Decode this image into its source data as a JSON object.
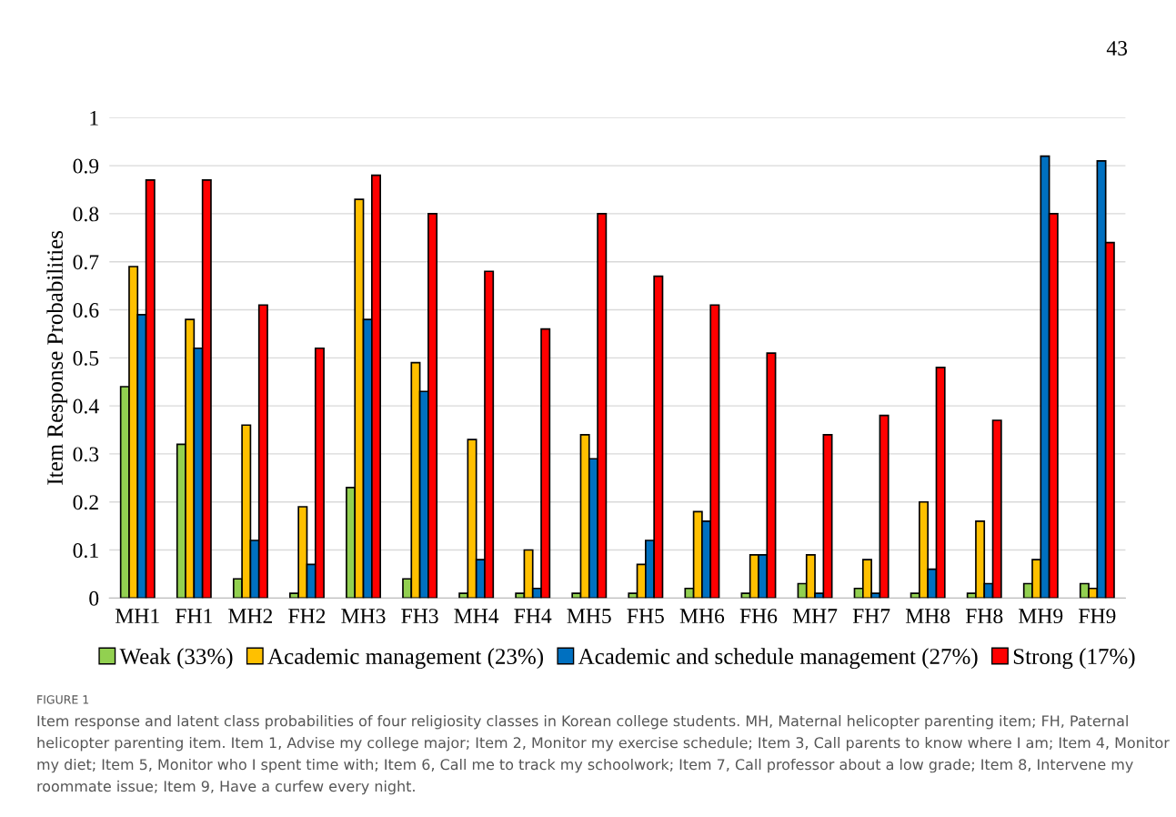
{
  "chart_data": {
    "type": "bar",
    "ylabel": "Item Response Probabilities",
    "categories": [
      "MH1",
      "FH1",
      "MH2",
      "FH2",
      "MH3",
      "FH3",
      "MH4",
      "FH4",
      "MH5",
      "FH5",
      "MH6",
      "FH6",
      "MH7",
      "FH7",
      "MH8",
      "FH8",
      "MH9",
      "FH9"
    ],
    "series": [
      {
        "name": "Weak (33%)",
        "color": "#92d050",
        "values": [
          0.44,
          0.32,
          0.04,
          0.01,
          0.23,
          0.04,
          0.01,
          0.01,
          0.01,
          0.01,
          0.02,
          0.01,
          0.03,
          0.02,
          0.01,
          0.01,
          0.03,
          0.03
        ]
      },
      {
        "name": "Academic management (23%)",
        "color": "#ffc000",
        "values": [
          0.69,
          0.58,
          0.36,
          0.19,
          0.83,
          0.49,
          0.33,
          0.1,
          0.34,
          0.07,
          0.18,
          0.09,
          0.09,
          0.08,
          0.2,
          0.16,
          0.08,
          0.02
        ]
      },
      {
        "name": "Academic and schedule management (27%)",
        "color": "#0070c0",
        "values": [
          0.59,
          0.52,
          0.12,
          0.07,
          0.58,
          0.43,
          0.08,
          0.02,
          0.29,
          0.12,
          0.16,
          0.09,
          0.01,
          0.01,
          0.06,
          0.03,
          0.92,
          0.91
        ]
      },
      {
        "name": "Strong (17%)",
        "color": "#ff0000",
        "values": [
          0.87,
          0.87,
          0.61,
          0.52,
          0.88,
          0.8,
          0.68,
          0.56,
          0.8,
          0.67,
          0.61,
          0.51,
          0.34,
          0.38,
          0.48,
          0.37,
          0.8,
          0.74
        ]
      }
    ],
    "ylim": [
      0,
      1
    ],
    "yticks": [
      0,
      0.1,
      0.2,
      0.3,
      0.4,
      0.5,
      0.6,
      0.7,
      0.8,
      0.9,
      1
    ],
    "grid": "y",
    "legend": "bottom",
    "annotations": [
      "43",
      "FIGURE 1",
      "Item response and latent class probabilities of four religiosity classes in Korean college students. MH, Maternal helicopter parenting item; FH, Paternal helicopter parenting item. Item 1, Advise my college major; Item 2, Monitor my exercise schedule; Item 3, Call parents to know where I am; Item 4, Monitor my diet; Item 5, Monitor who I spent time with; Item 6, Call me to track my schoolwork; Item 7, Call professor about a low grade; Item 8, Intervene my roommate issue; Item 9, Have a curfew every night."
    ]
  }
}
